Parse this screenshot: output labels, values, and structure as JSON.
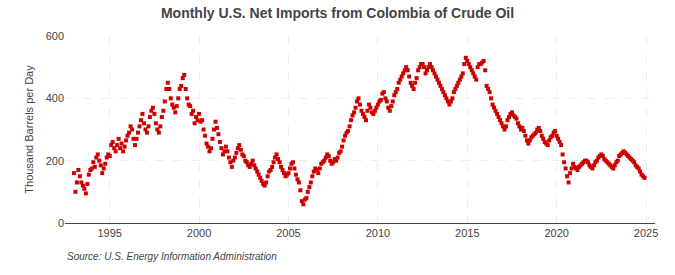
{
  "chart_data": {
    "type": "scatter",
    "title": "Monthly U.S. Net Imports from Colombia of Crude Oil",
    "ylabel": "Thousand Barrels per Day",
    "annotations": [
      "Source: U.S. Energy Information Administration"
    ],
    "color": "#cc0000",
    "marker": "square",
    "grid": true,
    "xlim": [
      1992.5,
      2025.5
    ],
    "ylim": [
      0,
      600
    ],
    "xticks": [
      1995,
      2000,
      2005,
      2010,
      2015,
      2020,
      2025
    ],
    "yticks": [
      0,
      200,
      400,
      600
    ],
    "x": [
      1993,
      1993.0833,
      1993.1667,
      1993.25,
      1993.3333,
      1993.4167,
      1993.5,
      1993.5833,
      1993.6667,
      1993.75,
      1993.8333,
      1993.9167,
      1994,
      1994.0833,
      1994.1667,
      1994.25,
      1994.3333,
      1994.4167,
      1994.5,
      1994.5833,
      1994.6667,
      1994.75,
      1994.8333,
      1994.9167,
      1995,
      1995.0833,
      1995.1667,
      1995.25,
      1995.3333,
      1995.4167,
      1995.5,
      1995.5833,
      1995.6667,
      1995.75,
      1995.8333,
      1995.9167,
      1996,
      1996.0833,
      1996.1667,
      1996.25,
      1996.3333,
      1996.4167,
      1996.5,
      1996.5833,
      1996.6667,
      1996.75,
      1996.8333,
      1996.9167,
      1997,
      1997.0833,
      1997.1667,
      1997.25,
      1997.3333,
      1997.4167,
      1997.5,
      1997.5833,
      1997.6667,
      1997.75,
      1997.8333,
      1997.9167,
      1998,
      1998.0833,
      1998.1667,
      1998.25,
      1998.3333,
      1998.4167,
      1998.5,
      1998.5833,
      1998.6667,
      1998.75,
      1998.8333,
      1998.9167,
      1999,
      1999.0833,
      1999.1667,
      1999.25,
      1999.3333,
      1999.4167,
      1999.5,
      1999.5833,
      1999.6667,
      1999.75,
      1999.8333,
      1999.9167,
      2000,
      2000.0833,
      2000.1667,
      2000.25,
      2000.3333,
      2000.4167,
      2000.5,
      2000.5833,
      2000.6667,
      2000.75,
      2000.8333,
      2000.9167,
      2001,
      2001.0833,
      2001.1667,
      2001.25,
      2001.3333,
      2001.4167,
      2001.5,
      2001.5833,
      2001.6667,
      2001.75,
      2001.8333,
      2001.9167,
      2002,
      2002.0833,
      2002.1667,
      2002.25,
      2002.3333,
      2002.4167,
      2002.5,
      2002.5833,
      2002.6667,
      2002.75,
      2002.8333,
      2002.9167,
      2003,
      2003.0833,
      2003.1667,
      2003.25,
      2003.3333,
      2003.4167,
      2003.5,
      2003.5833,
      2003.6667,
      2003.75,
      2003.8333,
      2003.9167,
      2004,
      2004.0833,
      2004.1667,
      2004.25,
      2004.3333,
      2004.4167,
      2004.5,
      2004.5833,
      2004.6667,
      2004.75,
      2004.8333,
      2004.9167,
      2005,
      2005.0833,
      2005.1667,
      2005.25,
      2005.3333,
      2005.4167,
      2005.5,
      2005.5833,
      2005.6667,
      2005.75,
      2005.8333,
      2005.9167,
      2006,
      2006.0833,
      2006.1667,
      2006.25,
      2006.3333,
      2006.4167,
      2006.5,
      2006.5833,
      2006.6667,
      2006.75,
      2006.8333,
      2006.9167,
      2007,
      2007.0833,
      2007.1667,
      2007.25,
      2007.3333,
      2007.4167,
      2007.5,
      2007.5833,
      2007.6667,
      2007.75,
      2007.8333,
      2007.9167,
      2008,
      2008.0833,
      2008.1667,
      2008.25,
      2008.3333,
      2008.4167,
      2008.5,
      2008.5833,
      2008.6667,
      2008.75,
      2008.8333,
      2008.9167,
      2009,
      2009.0833,
      2009.1667,
      2009.25,
      2009.3333,
      2009.4167,
      2009.5,
      2009.5833,
      2009.6667,
      2009.75,
      2009.8333,
      2009.9167,
      2010,
      2010.0833,
      2010.1667,
      2010.25,
      2010.3333,
      2010.4167,
      2010.5,
      2010.5833,
      2010.6667,
      2010.75,
      2010.8333,
      2010.9167,
      2011,
      2011.0833,
      2011.1667,
      2011.25,
      2011.3333,
      2011.4167,
      2011.5,
      2011.5833,
      2011.6667,
      2011.75,
      2011.8333,
      2011.9167,
      2012,
      2012.0833,
      2012.1667,
      2012.25,
      2012.3333,
      2012.4167,
      2012.5,
      2012.5833,
      2012.6667,
      2012.75,
      2012.8333,
      2012.9167,
      2013,
      2013.0833,
      2013.1667,
      2013.25,
      2013.3333,
      2013.4167,
      2013.5,
      2013.5833,
      2013.6667,
      2013.75,
      2013.8333,
      2013.9167,
      2014,
      2014.0833,
      2014.1667,
      2014.25,
      2014.3333,
      2014.4167,
      2014.5,
      2014.5833,
      2014.6667,
      2014.75,
      2014.8333,
      2014.9167,
      2015,
      2015.0833,
      2015.1667,
      2015.25,
      2015.3333,
      2015.4167,
      2015.5,
      2015.5833,
      2015.6667,
      2015.75,
      2015.8333,
      2015.9167,
      2016,
      2016.0833,
      2016.1667,
      2016.25,
      2016.3333,
      2016.4167,
      2016.5,
      2016.5833,
      2016.6667,
      2016.75,
      2016.8333,
      2016.9167,
      2017,
      2017.0833,
      2017.1667,
      2017.25,
      2017.3333,
      2017.4167,
      2017.5,
      2017.5833,
      2017.6667,
      2017.75,
      2017.8333,
      2017.9167,
      2018,
      2018.0833,
      2018.1667,
      2018.25,
      2018.3333,
      2018.4167,
      2018.5,
      2018.5833,
      2018.6667,
      2018.75,
      2018.8333,
      2018.9167,
      2019,
      2019.0833,
      2019.1667,
      2019.25,
      2019.3333,
      2019.4167,
      2019.5,
      2019.5833,
      2019.6667,
      2019.75,
      2019.8333,
      2019.9167,
      2020,
      2020.0833,
      2020.1667,
      2020.25,
      2020.3333,
      2020.4167,
      2020.5,
      2020.5833,
      2020.6667,
      2020.75,
      2020.8333,
      2020.9167,
      2021,
      2021.0833,
      2021.1667,
      2021.25,
      2021.3333,
      2021.4167,
      2021.5,
      2021.5833,
      2021.6667,
      2021.75,
      2021.8333,
      2021.9167,
      2022,
      2022.0833,
      2022.1667,
      2022.25,
      2022.3333,
      2022.4167,
      2022.5,
      2022.5833,
      2022.6667,
      2022.75,
      2022.8333,
      2022.9167,
      2023,
      2023.0833,
      2023.1667,
      2023.25,
      2023.3333,
      2023.4167,
      2023.5,
      2023.5833,
      2023.6667,
      2023.75,
      2023.8333,
      2023.9167,
      2024,
      2024.0833,
      2024.1667,
      2024.25,
      2024.3333,
      2024.4167,
      2024.5,
      2024.5833,
      2024.6667,
      2024.75,
      2024.8333,
      2024.9167
    ],
    "values": [
      160,
      100,
      130,
      170,
      150,
      130,
      120,
      110,
      95,
      125,
      155,
      170,
      175,
      195,
      180,
      210,
      220,
      200,
      185,
      160,
      175,
      190,
      210,
      220,
      215,
      250,
      260,
      240,
      230,
      250,
      270,
      240,
      255,
      230,
      245,
      265,
      280,
      290,
      310,
      300,
      270,
      250,
      270,
      290,
      310,
      330,
      350,
      320,
      300,
      290,
      310,
      340,
      360,
      370,
      350,
      320,
      300,
      290,
      310,
      340,
      360,
      390,
      430,
      450,
      430,
      400,
      380,
      370,
      355,
      375,
      400,
      430,
      440,
      465,
      475,
      430,
      400,
      380,
      375,
      350,
      360,
      320,
      340,
      330,
      350,
      325,
      330,
      300,
      280,
      255,
      245,
      230,
      240,
      270,
      300,
      325,
      305,
      285,
      260,
      240,
      220,
      230,
      245,
      230,
      210,
      195,
      180,
      200,
      210,
      225,
      240,
      250,
      235,
      220,
      215,
      200,
      195,
      185,
      180,
      190,
      200,
      185,
      175,
      165,
      155,
      145,
      135,
      125,
      120,
      130,
      150,
      165,
      170,
      180,
      195,
      210,
      220,
      205,
      195,
      180,
      170,
      160,
      150,
      155,
      160,
      175,
      190,
      195,
      175,
      155,
      140,
      130,
      105,
      70,
      60,
      75,
      80,
      100,
      115,
      130,
      150,
      165,
      175,
      170,
      160,
      175,
      190,
      195,
      200,
      210,
      220,
      215,
      200,
      190,
      195,
      205,
      200,
      210,
      225,
      230,
      245,
      265,
      280,
      290,
      295,
      310,
      330,
      345,
      355,
      370,
      390,
      400,
      380,
      360,
      350,
      340,
      330,
      360,
      380,
      370,
      355,
      350,
      360,
      370,
      380,
      390,
      395,
      415,
      420,
      400,
      390,
      370,
      360,
      375,
      390,
      410,
      420,
      430,
      450,
      460,
      470,
      480,
      490,
      500,
      490,
      470,
      450,
      440,
      430,
      450,
      465,
      490,
      500,
      510,
      510,
      500,
      480,
      490,
      500,
      510,
      500,
      490,
      480,
      470,
      460,
      450,
      440,
      430,
      420,
      410,
      400,
      390,
      380,
      390,
      400,
      420,
      430,
      440,
      450,
      460,
      470,
      480,
      510,
      530,
      520,
      510,
      500,
      490,
      480,
      470,
      460,
      500,
      510,
      510,
      515,
      520,
      490,
      440,
      430,
      420,
      400,
      380,
      370,
      360,
      350,
      340,
      330,
      320,
      310,
      300,
      310,
      330,
      340,
      350,
      355,
      345,
      340,
      335,
      320,
      310,
      300,
      305,
      295,
      280,
      265,
      255,
      265,
      275,
      280,
      285,
      290,
      300,
      305,
      295,
      280,
      270,
      260,
      255,
      250,
      265,
      275,
      280,
      290,
      295,
      280,
      270,
      260,
      250,
      220,
      195,
      175,
      150,
      130,
      160,
      175,
      190,
      180,
      175,
      170,
      180,
      185,
      190,
      195,
      200,
      200,
      195,
      185,
      180,
      175,
      185,
      195,
      200,
      210,
      215,
      220,
      215,
      205,
      200,
      195,
      190,
      185,
      180,
      175,
      185,
      195,
      200,
      215,
      220,
      225,
      230,
      225,
      220,
      215,
      210,
      205,
      200,
      195,
      185,
      180,
      175,
      165,
      155,
      150,
      145
    ]
  }
}
